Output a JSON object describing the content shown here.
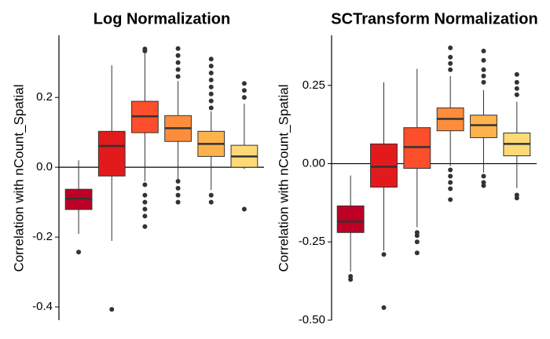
{
  "chart_data": [
    {
      "type": "box",
      "title": "Log Normalization",
      "ylabel": "Correlation with nCount_Spatial",
      "ylim": [
        -0.438,
        0.378
      ],
      "yticks": [
        0.2,
        {
          "value": 0,
          "label": "0.0"
        },
        -0.2,
        -0.4
      ],
      "hline": 0,
      "boxes": [
        {
          "color": "#bd0026",
          "min": -0.191,
          "q1": -0.121,
          "median": -0.09,
          "q3": -0.063,
          "max": 0.02,
          "outliers": [
            -0.243
          ]
        },
        {
          "color": "#e31a1c",
          "min": -0.211,
          "q1": -0.025,
          "median": 0.061,
          "q3": 0.103,
          "max": 0.292,
          "outliers": [
            -0.407
          ]
        },
        {
          "color": "#fc4e2a",
          "min": -0.04,
          "q1": 0.099,
          "median": 0.146,
          "q3": 0.189,
          "max": 0.326,
          "outliers": [
            0.339,
            0.333,
            -0.05,
            -0.08,
            -0.1,
            -0.12,
            -0.14,
            -0.17
          ]
        },
        {
          "color": "#fd8d3c",
          "min": -0.034,
          "q1": 0.074,
          "median": 0.112,
          "q3": 0.148,
          "max": 0.247,
          "outliers": [
            0.26,
            0.28,
            0.3,
            0.32,
            0.34,
            -0.04,
            -0.06,
            -0.08,
            -0.1
          ]
        },
        {
          "color": "#feb24c",
          "min": -0.065,
          "q1": 0.031,
          "median": 0.067,
          "q3": 0.103,
          "max": 0.16,
          "outliers": [
            0.31,
            0.29,
            0.27,
            0.25,
            0.23,
            0.21,
            0.19,
            0.17,
            -0.08,
            -0.1
          ]
        },
        {
          "color": "#fed976",
          "min": -0.005,
          "q1": 0.0,
          "median": 0.031,
          "q3": 0.063,
          "max": 0.182,
          "outliers": [
            0.24,
            0.22,
            0.2,
            -0.12
          ]
        }
      ]
    },
    {
      "type": "box",
      "title": "SCTransform Normalization",
      "ylabel": "Correlation with nCount_Spatial",
      "ylim": [
        -0.5,
        0.41
      ],
      "yticks": [
        0.25,
        {
          "value": 0,
          "label": "0.00"
        },
        -0.25,
        {
          "value": -0.5,
          "label": "-0.50"
        }
      ],
      "hline": 0,
      "boxes": [
        {
          "color": "#bd0026",
          "min": -0.345,
          "q1": -0.22,
          "median": -0.185,
          "q3": -0.135,
          "max": -0.038,
          "outliers": [
            -0.36,
            -0.37
          ]
        },
        {
          "color": "#e31a1c",
          "min": -0.278,
          "q1": -0.075,
          "median": -0.01,
          "q3": 0.063,
          "max": 0.26,
          "outliers": [
            -0.29,
            -0.46
          ]
        },
        {
          "color": "#fc4e2a",
          "min": -0.203,
          "q1": -0.015,
          "median": 0.053,
          "q3": 0.115,
          "max": 0.303,
          "outliers": [
            -0.22,
            -0.23,
            -0.25,
            -0.285
          ]
        },
        {
          "color": "#fd8d3c",
          "min": -0.008,
          "q1": 0.105,
          "median": 0.143,
          "q3": 0.178,
          "max": 0.28,
          "outliers": [
            0.3,
            0.32,
            0.34,
            0.37,
            -0.02,
            -0.04,
            -0.06,
            -0.08,
            -0.115
          ]
        },
        {
          "color": "#feb24c",
          "min": -0.028,
          "q1": 0.083,
          "median": 0.123,
          "q3": 0.155,
          "max": 0.235,
          "outliers": [
            0.26,
            0.28,
            0.3,
            0.33,
            0.36,
            -0.04,
            -0.06,
            -0.07
          ]
        },
        {
          "color": "#fed976",
          "min": -0.078,
          "q1": 0.025,
          "median": 0.063,
          "q3": 0.098,
          "max": 0.198,
          "outliers": [
            0.22,
            0.24,
            0.26,
            0.285,
            -0.1,
            -0.11
          ]
        }
      ]
    }
  ]
}
